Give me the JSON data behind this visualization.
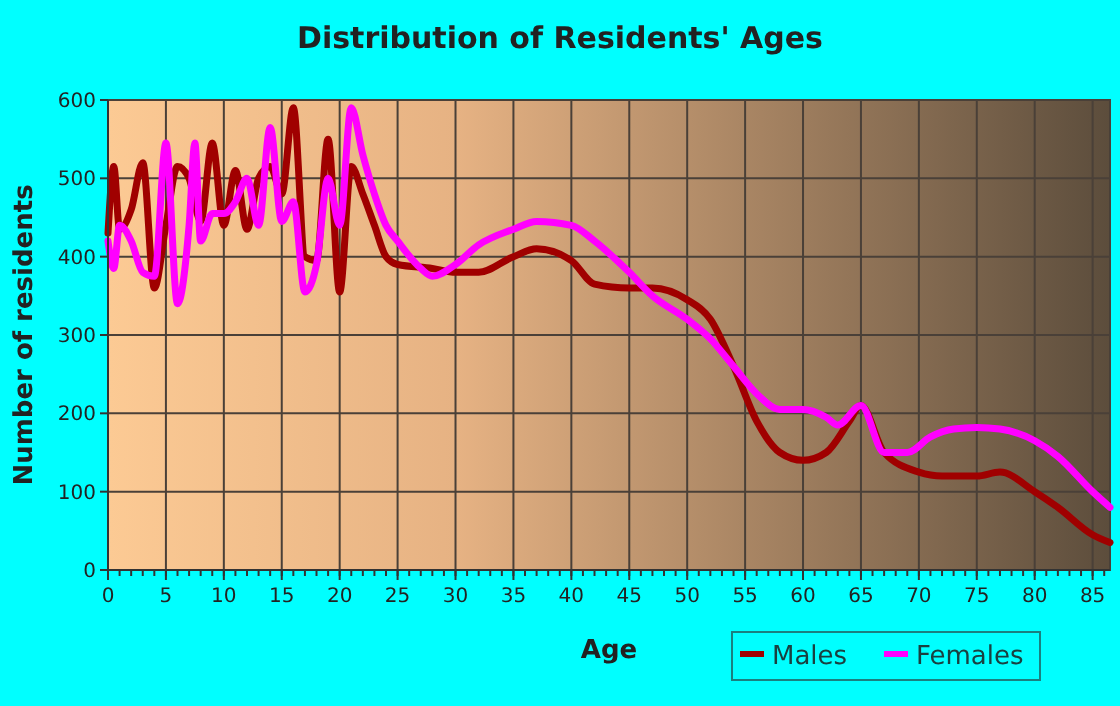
{
  "chart_data": {
    "type": "line",
    "title": "Distribution of Residents' Ages",
    "xlabel": "Age",
    "ylabel": "Number of residents",
    "xlim": [
      0,
      86.5
    ],
    "xticks": [
      0,
      5,
      10,
      15,
      20,
      25,
      30,
      35,
      40,
      45,
      50,
      55,
      60,
      65,
      70,
      75,
      80,
      85
    ],
    "ylim": [
      0,
      600
    ],
    "yticks": [
      0,
      100,
      200,
      300,
      400,
      500,
      600
    ],
    "grid": true,
    "legend": "bottom",
    "line_style": "solid",
    "series": [
      {
        "name": "Males",
        "color": "#a00000",
        "x": [
          0,
          0.5,
          1,
          2,
          3,
          4,
          5,
          6,
          7,
          8,
          9,
          10,
          11,
          12,
          13,
          14,
          15,
          16,
          17,
          18,
          19,
          20,
          21,
          22,
          23,
          24,
          25,
          28,
          30,
          32,
          35,
          37,
          40,
          42,
          45,
          47,
          50,
          52,
          54,
          56,
          58,
          60,
          62,
          64,
          65,
          67,
          70,
          72,
          75,
          77,
          80,
          82,
          85,
          86.5
        ],
        "values": [
          430,
          515,
          435,
          460,
          520,
          360,
          440,
          515,
          500,
          445,
          545,
          440,
          510,
          435,
          500,
          515,
          480,
          590,
          400,
          395,
          550,
          355,
          515,
          480,
          440,
          400,
          390,
          385,
          380,
          380,
          400,
          410,
          395,
          365,
          360,
          360,
          345,
          320,
          260,
          190,
          150,
          140,
          150,
          190,
          210,
          150,
          125,
          120,
          120,
          125,
          100,
          80,
          45,
          35
        ]
      },
      {
        "name": "Females",
        "color": "#ff00ff",
        "x": [
          0,
          0.5,
          1,
          2,
          3,
          4,
          5,
          6,
          7,
          7.5,
          8,
          9,
          10,
          11,
          12,
          13,
          14,
          15,
          16,
          17,
          18,
          19,
          20,
          21,
          22,
          23,
          24,
          25,
          27,
          28,
          30,
          32,
          35,
          37,
          40,
          42,
          45,
          47,
          50,
          52,
          54,
          56,
          58,
          60,
          62,
          63,
          65,
          67,
          69,
          71,
          73,
          75,
          77,
          80,
          82,
          85,
          86.5
        ],
        "values": [
          420,
          385,
          440,
          420,
          380,
          375,
          545,
          340,
          440,
          545,
          420,
          455,
          455,
          470,
          500,
          440,
          565,
          445,
          470,
          355,
          390,
          500,
          440,
          590,
          530,
          480,
          440,
          420,
          385,
          375,
          390,
          415,
          435,
          445,
          440,
          420,
          380,
          350,
          320,
          295,
          260,
          225,
          205,
          205,
          195,
          185,
          210,
          150,
          150,
          170,
          180,
          182,
          180,
          165,
          145,
          100,
          80
        ]
      }
    ]
  }
}
